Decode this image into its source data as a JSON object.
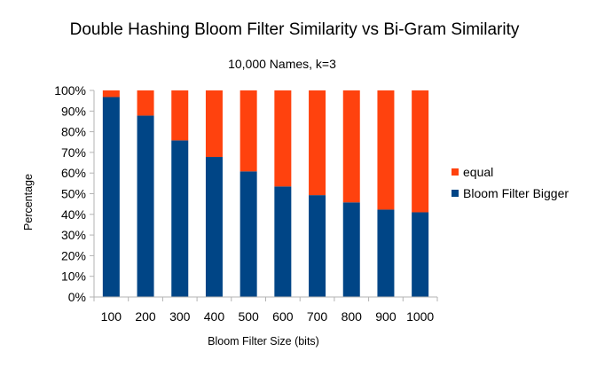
{
  "chart_data": {
    "type": "bar",
    "stacked": true,
    "percent_stacked": true,
    "title": "Double Hashing Bloom Filter Similarity vs Bi-Gram Similarity",
    "subtitle": "10,000 Names, k=3",
    "xlabel": "Bloom Filter Size (bits)",
    "ylabel": "Percentage",
    "categories": [
      "100",
      "200",
      "300",
      "400",
      "500",
      "600",
      "700",
      "800",
      "900",
      "1000"
    ],
    "series": [
      {
        "name": "Bloom Filter Bigger",
        "color": "#004586",
        "values": [
          96.8,
          87.8,
          75.8,
          67.8,
          60.8,
          53.5,
          49.3,
          45.8,
          42.3,
          41.0
        ]
      },
      {
        "name": "equal",
        "color": "#ff420e",
        "values": [
          3.2,
          12.2,
          24.2,
          32.2,
          39.2,
          46.5,
          50.7,
          54.2,
          57.7,
          59.0
        ]
      }
    ],
    "ylim": [
      0,
      100
    ],
    "yticks": [
      "0%",
      "10%",
      "20%",
      "30%",
      "40%",
      "50%",
      "60%",
      "70%",
      "80%",
      "90%",
      "100%"
    ],
    "legend_order": [
      "equal",
      "Bloom Filter Bigger"
    ],
    "legend_position": "right",
    "grid": false
  }
}
